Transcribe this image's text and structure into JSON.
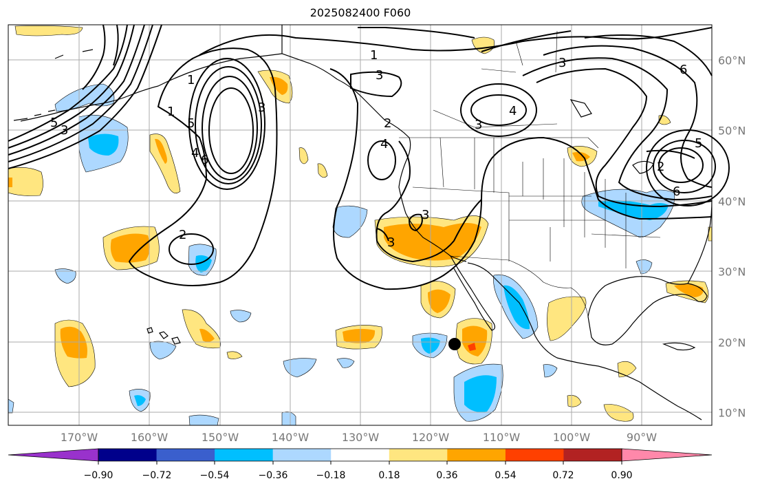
{
  "title": "2025082400 F060",
  "lon_labels": [
    "170°W",
    "160°W",
    "150°W",
    "140°W",
    "130°W",
    "120°W",
    "110°W",
    "100°W",
    "90°W"
  ],
  "lat_labels": [
    "60°N",
    "50°N",
    "40°N",
    "30°N",
    "20°N",
    "10°N"
  ],
  "contour_labels": [
    "1",
    "3",
    "3",
    "4",
    "6",
    "5",
    "4",
    "2",
    "3",
    "4",
    "3",
    "3",
    "1",
    "3",
    "6",
    "5",
    "2",
    "6",
    "5",
    "3",
    "2",
    "1"
  ],
  "colorbar": {
    "ticks": [
      "−0.90",
      "−0.72",
      "−0.54",
      "−0.36",
      "−0.18",
      "0.18",
      "0.36",
      "0.54",
      "0.72",
      "0.90"
    ],
    "colors": [
      "#9932cc",
      "#00008b",
      "#3a5fcd",
      "#00bfff",
      "#add8ff",
      "#ffffff",
      "#ffe680",
      "#ffa500",
      "#ff4000",
      "#b22222",
      "#ff88aa"
    ]
  },
  "map_colors": {
    "land_line": "#000000",
    "grid": "#aaaaaa",
    "contour": "#000000"
  }
}
